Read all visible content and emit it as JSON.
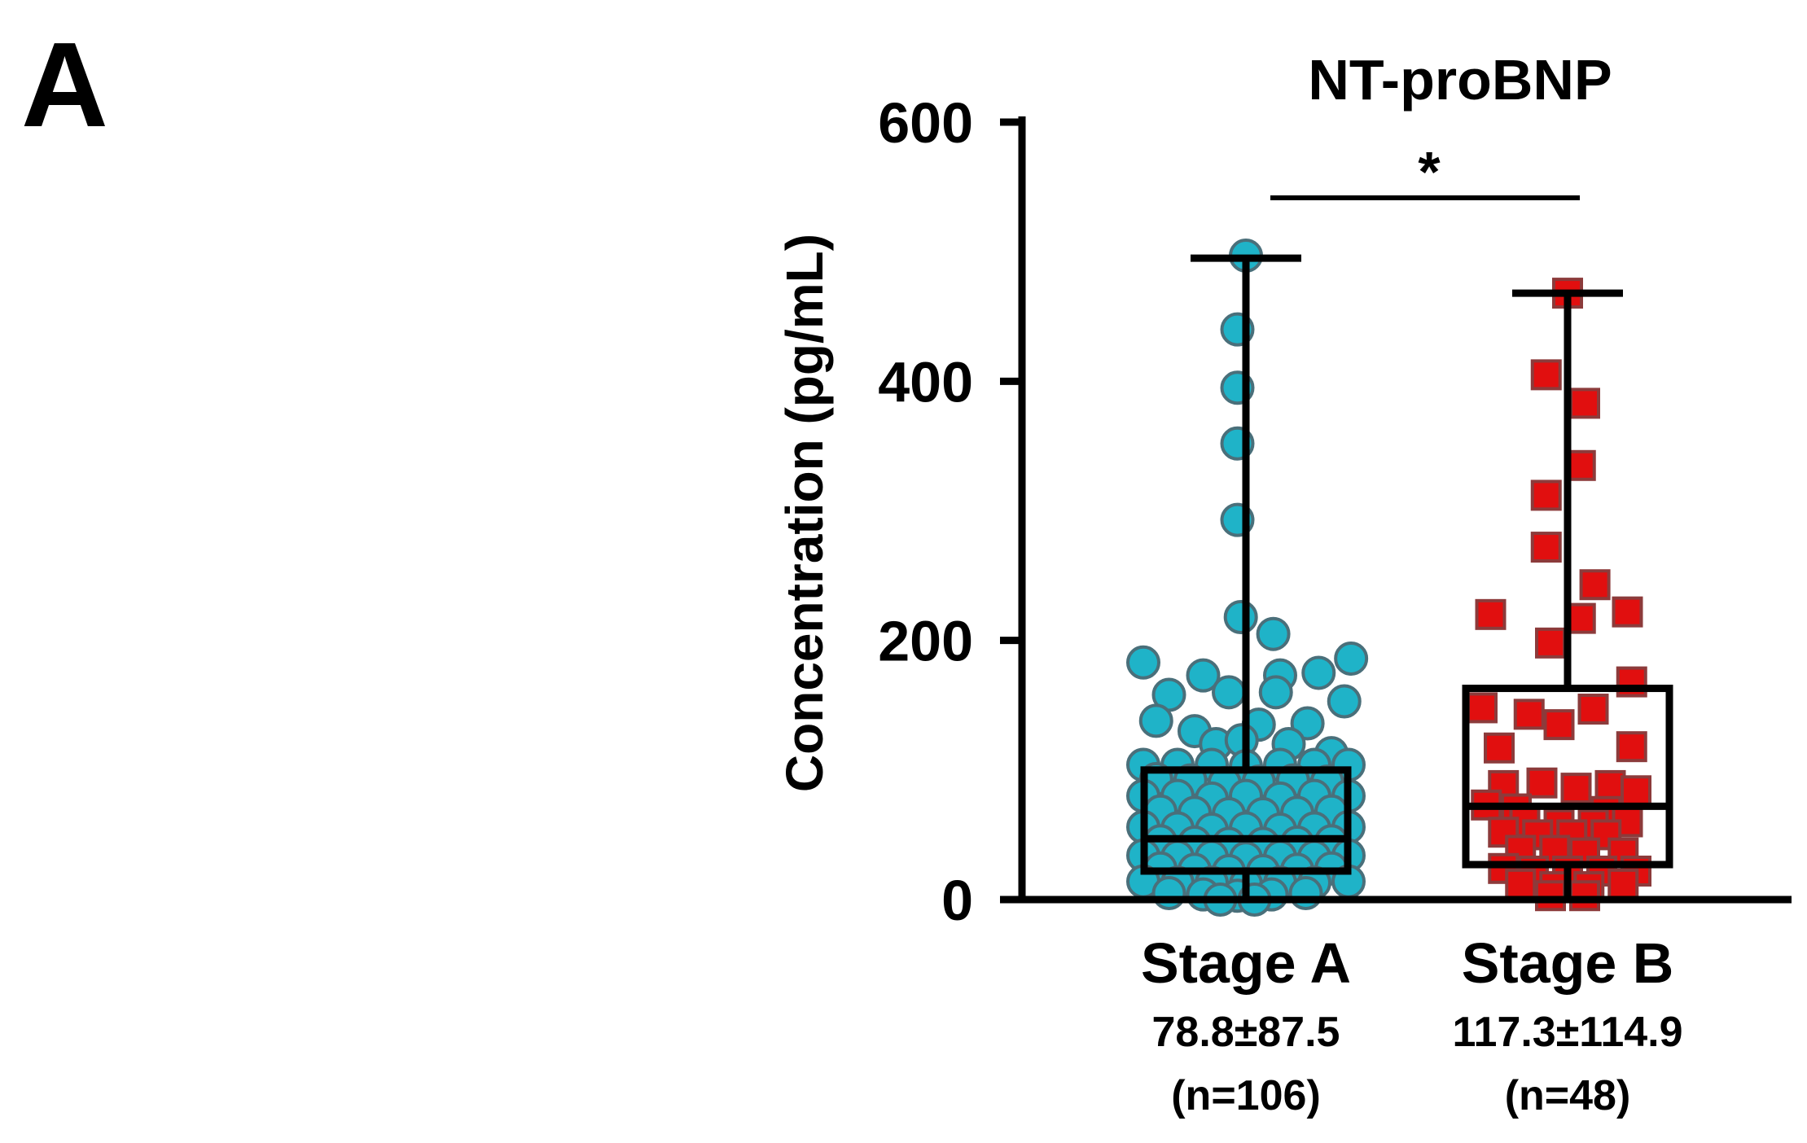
{
  "panel_label": "A",
  "chart_data": {
    "type": "box-scatter",
    "title": "NT-proBNP",
    "ylabel": "Concentration  (pg/mL)",
    "xlabel": "",
    "ylim": [
      0,
      600
    ],
    "yticks": [
      0,
      200,
      400,
      600
    ],
    "grid": false,
    "legend": "none",
    "significance": {
      "between": [
        "Stage A",
        "Stage B"
      ],
      "label": "*"
    },
    "groups": [
      {
        "category": "Stage A",
        "stat_label": "78.8±87.5",
        "n_label": "(n=106)",
        "marker": "circle",
        "color": "#1fb3c8",
        "stroke": "#4a6f7a",
        "box": {
          "q1": 22,
          "median": 47,
          "q3": 100,
          "whisker_low": 0,
          "whisker_high": 495
        },
        "points": [
          {
            "dx": 0,
            "y": 497
          },
          {
            "dx": -0.1,
            "y": 440
          },
          {
            "dx": -0.1,
            "y": 395
          },
          {
            "dx": -0.1,
            "y": 352
          },
          {
            "dx": -0.1,
            "y": 293
          },
          {
            "dx": -0.06,
            "y": 218
          },
          {
            "dx": 0.32,
            "y": 205
          },
          {
            "dx": -1.2,
            "y": 183
          },
          {
            "dx": 1.23,
            "y": 186
          },
          {
            "dx": -0.5,
            "y": 173
          },
          {
            "dx": 0.4,
            "y": 173
          },
          {
            "dx": 0.85,
            "y": 175
          },
          {
            "dx": -0.9,
            "y": 158
          },
          {
            "dx": -0.2,
            "y": 160
          },
          {
            "dx": 0.35,
            "y": 160
          },
          {
            "dx": 1.15,
            "y": 153
          },
          {
            "dx": -1.05,
            "y": 138
          },
          {
            "dx": -0.6,
            "y": 130
          },
          {
            "dx": 0.15,
            "y": 135
          },
          {
            "dx": 0.72,
            "y": 136
          },
          {
            "dx": -0.35,
            "y": 120
          },
          {
            "dx": -0.05,
            "y": 123
          },
          {
            "dx": 0.5,
            "y": 120
          },
          {
            "dx": 1.0,
            "y": 113
          },
          {
            "dx": -1.2,
            "y": 104
          },
          {
            "dx": -0.8,
            "y": 104
          },
          {
            "dx": -0.4,
            "y": 104
          },
          {
            "dx": 0.0,
            "y": 103
          },
          {
            "dx": 0.4,
            "y": 104
          },
          {
            "dx": 0.8,
            "y": 104
          },
          {
            "dx": 1.2,
            "y": 104
          },
          {
            "dx": -1.05,
            "y": 93
          },
          {
            "dx": -0.65,
            "y": 92
          },
          {
            "dx": -0.25,
            "y": 90
          },
          {
            "dx": 0.15,
            "y": 91
          },
          {
            "dx": 0.55,
            "y": 92
          },
          {
            "dx": 0.95,
            "y": 91
          },
          {
            "dx": -1.2,
            "y": 80
          },
          {
            "dx": -0.8,
            "y": 80
          },
          {
            "dx": -0.4,
            "y": 78
          },
          {
            "dx": 0.0,
            "y": 80
          },
          {
            "dx": 0.4,
            "y": 78
          },
          {
            "dx": 0.8,
            "y": 80
          },
          {
            "dx": 1.2,
            "y": 80
          },
          {
            "dx": -1.0,
            "y": 68
          },
          {
            "dx": -0.6,
            "y": 67
          },
          {
            "dx": -0.2,
            "y": 66
          },
          {
            "dx": 0.2,
            "y": 66
          },
          {
            "dx": 0.6,
            "y": 67
          },
          {
            "dx": 1.0,
            "y": 68
          },
          {
            "dx": -1.2,
            "y": 56
          },
          {
            "dx": -0.8,
            "y": 55
          },
          {
            "dx": -0.4,
            "y": 54
          },
          {
            "dx": 0.0,
            "y": 55
          },
          {
            "dx": 0.4,
            "y": 54
          },
          {
            "dx": 0.8,
            "y": 55
          },
          {
            "dx": 1.2,
            "y": 56
          },
          {
            "dx": -1.0,
            "y": 45
          },
          {
            "dx": -0.6,
            "y": 44
          },
          {
            "dx": -0.2,
            "y": 43
          },
          {
            "dx": 0.2,
            "y": 43
          },
          {
            "dx": 0.6,
            "y": 44
          },
          {
            "dx": 1.0,
            "y": 45
          },
          {
            "dx": -1.2,
            "y": 34
          },
          {
            "dx": -0.8,
            "y": 33
          },
          {
            "dx": -0.4,
            "y": 33
          },
          {
            "dx": 0.0,
            "y": 32
          },
          {
            "dx": 0.4,
            "y": 33
          },
          {
            "dx": 0.8,
            "y": 33
          },
          {
            "dx": 1.2,
            "y": 34
          },
          {
            "dx": -1.0,
            "y": 24
          },
          {
            "dx": -0.6,
            "y": 23
          },
          {
            "dx": -0.2,
            "y": 22
          },
          {
            "dx": 0.2,
            "y": 22
          },
          {
            "dx": 0.6,
            "y": 23
          },
          {
            "dx": 1.0,
            "y": 24
          },
          {
            "dx": -1.2,
            "y": 14
          },
          {
            "dx": -0.8,
            "y": 13
          },
          {
            "dx": -0.4,
            "y": 13
          },
          {
            "dx": 0.0,
            "y": 12
          },
          {
            "dx": 0.4,
            "y": 13
          },
          {
            "dx": 0.8,
            "y": 13
          },
          {
            "dx": 1.2,
            "y": 14
          },
          {
            "dx": -0.9,
            "y": 5
          },
          {
            "dx": -0.5,
            "y": 4
          },
          {
            "dx": -0.1,
            "y": 3
          },
          {
            "dx": 0.3,
            "y": 4
          },
          {
            "dx": 0.7,
            "y": 5
          },
          {
            "dx": -0.3,
            "y": 0
          },
          {
            "dx": 0.1,
            "y": 0
          }
        ]
      },
      {
        "category": "Stage B",
        "stat_label": "117.3±114.9",
        "n_label": "(n=48)",
        "marker": "square",
        "color": "#e10f0f",
        "stroke": "#8c3b3b",
        "box": {
          "q1": 27,
          "median": 72,
          "q3": 163,
          "whisker_low": 0,
          "whisker_high": 468
        },
        "points": [
          {
            "dx": 0,
            "y": 468
          },
          {
            "dx": -0.25,
            "y": 405
          },
          {
            "dx": 0.2,
            "y": 383
          },
          {
            "dx": 0.15,
            "y": 335
          },
          {
            "dx": -0.25,
            "y": 312
          },
          {
            "dx": -0.25,
            "y": 272
          },
          {
            "dx": 0.32,
            "y": 243
          },
          {
            "dx": -0.9,
            "y": 220
          },
          {
            "dx": 0.15,
            "y": 217
          },
          {
            "dx": 0.7,
            "y": 222
          },
          {
            "dx": -0.2,
            "y": 198
          },
          {
            "dx": 0.75,
            "y": 168
          },
          {
            "dx": -1.0,
            "y": 148
          },
          {
            "dx": -0.45,
            "y": 143
          },
          {
            "dx": 0.3,
            "y": 147
          },
          {
            "dx": -0.1,
            "y": 135
          },
          {
            "dx": -0.8,
            "y": 117
          },
          {
            "dx": 0.75,
            "y": 118
          },
          {
            "dx": -0.75,
            "y": 88
          },
          {
            "dx": -0.3,
            "y": 90
          },
          {
            "dx": 0.1,
            "y": 86
          },
          {
            "dx": 0.5,
            "y": 88
          },
          {
            "dx": 0.8,
            "y": 84
          },
          {
            "dx": -0.95,
            "y": 73
          },
          {
            "dx": -0.6,
            "y": 70
          },
          {
            "dx": 0.45,
            "y": 68
          },
          {
            "dx": -0.5,
            "y": 60
          },
          {
            "dx": -0.1,
            "y": 58
          },
          {
            "dx": 0.3,
            "y": 58
          },
          {
            "dx": 0.7,
            "y": 60
          },
          {
            "dx": -0.75,
            "y": 52
          },
          {
            "dx": -0.35,
            "y": 50
          },
          {
            "dx": 0.05,
            "y": 50
          },
          {
            "dx": 0.45,
            "y": 50
          },
          {
            "dx": -0.55,
            "y": 38
          },
          {
            "dx": -0.15,
            "y": 38
          },
          {
            "dx": 0.2,
            "y": 36
          },
          {
            "dx": 0.65,
            "y": 36
          },
          {
            "dx": -0.75,
            "y": 24
          },
          {
            "dx": -0.4,
            "y": 22
          },
          {
            "dx": 0.0,
            "y": 22
          },
          {
            "dx": 0.4,
            "y": 22
          },
          {
            "dx": 0.8,
            "y": 22
          },
          {
            "dx": -0.55,
            "y": 12
          },
          {
            "dx": -0.15,
            "y": 10
          },
          {
            "dx": 0.25,
            "y": 10
          },
          {
            "dx": 0.65,
            "y": 12
          },
          {
            "dx": -0.2,
            "y": 3
          },
          {
            "dx": 0.2,
            "y": 3
          }
        ]
      }
    ]
  }
}
